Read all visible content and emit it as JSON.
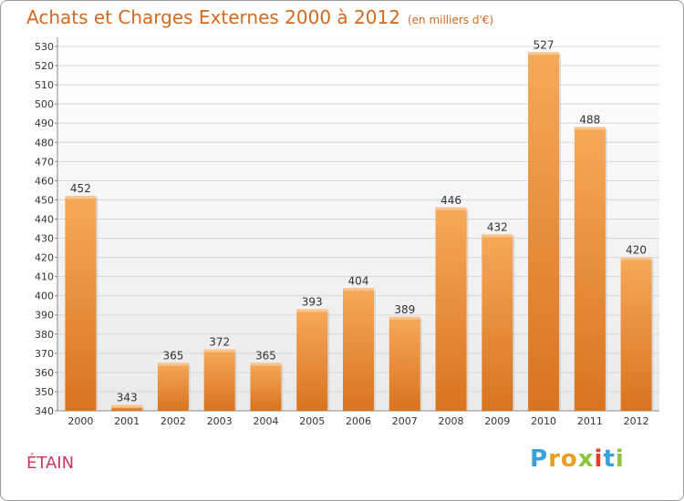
{
  "header": {
    "title": "Achats et Charges Externes 2000 à 2012",
    "subtitle": "(en milliers d'€)"
  },
  "footer": {
    "commune": "ÉTAIN",
    "logo": "Proxiti"
  },
  "colors": {
    "bar_top": "#f6a95a",
    "bar_bottom": "#d9731e",
    "grid": "#d7d7d7",
    "title": "#d2691e",
    "commune": "#c8385f",
    "plot_bg": "#eaeaea"
  },
  "chart_data": {
    "type": "bar",
    "title": "Achats et Charges Externes 2000 à 2012",
    "subtitle": "(en milliers d'€)",
    "categories": [
      "2000",
      "2001",
      "2002",
      "2003",
      "2004",
      "2005",
      "2006",
      "2007",
      "2008",
      "2009",
      "2010",
      "2011",
      "2012"
    ],
    "values": [
      452,
      343,
      365,
      372,
      365,
      393,
      404,
      389,
      446,
      432,
      527,
      488,
      420
    ],
    "ylim": [
      340,
      530
    ],
    "yticks": [
      340,
      350,
      360,
      370,
      380,
      390,
      400,
      410,
      420,
      430,
      440,
      450,
      460,
      470,
      480,
      490,
      500,
      510,
      520,
      530
    ],
    "grid": true,
    "legend": "none"
  }
}
